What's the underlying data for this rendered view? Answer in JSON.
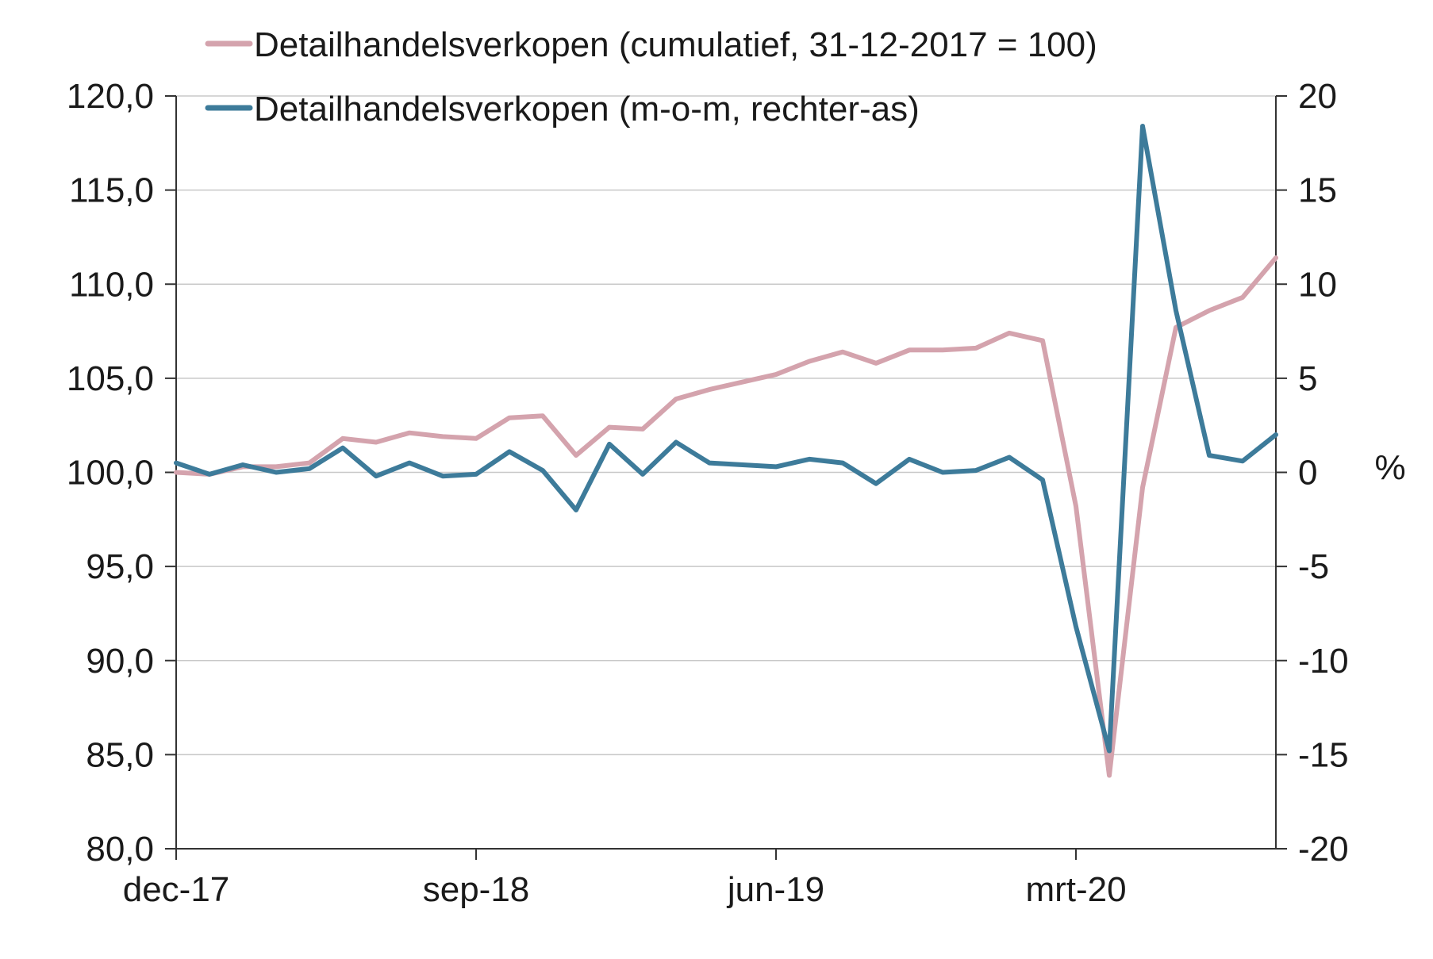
{
  "chart_data": {
    "type": "line",
    "x": [
      "dec-17",
      "jan-18",
      "feb-18",
      "mrt-18",
      "apr-18",
      "mei-18",
      "jun-18",
      "jul-18",
      "aug-18",
      "sep-18",
      "okt-18",
      "nov-18",
      "dec-18",
      "jan-19",
      "feb-19",
      "mrt-19",
      "apr-19",
      "mei-19",
      "jun-19",
      "jul-19",
      "aug-19",
      "sep-19",
      "okt-19",
      "nov-19",
      "dec-19",
      "jan-20",
      "feb-20",
      "mrt-20",
      "apr-20",
      "mei-20",
      "jun-20",
      "jul-20",
      "aug-20",
      "sep-20"
    ],
    "x_tick_labels": [
      "dec-17",
      "sep-18",
      "jun-19",
      "mrt-20"
    ],
    "x_tick_indices": [
      0,
      9,
      18,
      27
    ],
    "left_axis": {
      "ylim": [
        80,
        120
      ],
      "ticks": [
        "80,0",
        "85,0",
        "90,0",
        "95,0",
        "100,0",
        "105,0",
        "110,0",
        "115,0",
        "120,0"
      ]
    },
    "right_axis": {
      "ylim": [
        -20,
        20
      ],
      "ticks": [
        "-20",
        "-15",
        "-10",
        "-5",
        "0",
        "5",
        "10",
        "15",
        "20"
      ],
      "unit": "%"
    },
    "series": [
      {
        "name": "Detailhandelsverkopen (cumulatief, 31-12-2017 = 100)",
        "axis": "left",
        "color": "#d4a3ad",
        "values": [
          100.0,
          99.9,
          100.3,
          100.3,
          100.5,
          101.8,
          101.6,
          102.1,
          101.9,
          101.8,
          102.9,
          103.0,
          100.9,
          102.4,
          102.3,
          103.9,
          104.4,
          104.8,
          105.2,
          105.9,
          106.4,
          105.8,
          106.5,
          106.5,
          106.6,
          107.4,
          107.0,
          98.2,
          83.9,
          99.2,
          107.7,
          108.6,
          109.3,
          111.4
        ]
      },
      {
        "name": "Detailhandelsverkopen (m-o-m, rechter-as)",
        "axis": "right",
        "color": "#3d7b9a",
        "values": [
          0.5,
          -0.1,
          0.4,
          0.0,
          0.2,
          1.3,
          -0.2,
          0.5,
          -0.2,
          -0.1,
          1.1,
          0.1,
          -2.0,
          1.5,
          -0.1,
          1.6,
          0.5,
          0.4,
          0.3,
          0.7,
          0.5,
          -0.6,
          0.7,
          0.0,
          0.1,
          0.8,
          -0.4,
          -8.2,
          -14.8,
          18.4,
          8.6,
          0.9,
          0.6,
          2.0
        ]
      }
    ],
    "grid": true,
    "legend_position": "top-left"
  }
}
